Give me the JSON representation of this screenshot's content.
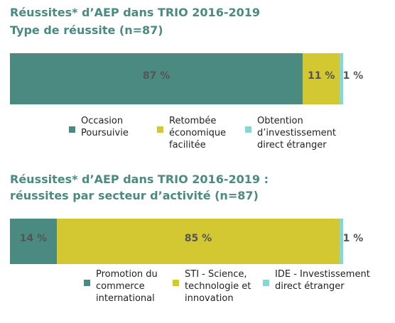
{
  "chart_data": [
    {
      "type": "bar",
      "stacked": true,
      "orientation": "horizontal",
      "title": "Réussites* d’AEP dans TRIO 2016-2019",
      "subtitle": "Type de réussite (n=87)",
      "series": [
        {
          "name": "Occasion Poursuivie",
          "color": "#4a8a80",
          "values": [
            87
          ],
          "value_labels": [
            "87 %"
          ]
        },
        {
          "name": "Retombée économique facilitée",
          "color": "#d4c832",
          "values": [
            11
          ],
          "value_labels": [
            "11 %"
          ]
        },
        {
          "name": "Obtention d’investissement direct étranger",
          "color": "#86d6d4",
          "values": [
            1
          ],
          "value_labels": [
            "1 %"
          ]
        }
      ]
    },
    {
      "type": "bar",
      "stacked": true,
      "orientation": "horizontal",
      "title": "Réussites* d’AEP dans TRIO 2016-2019 :",
      "subtitle": "réussites par secteur d’activité (n=87)",
      "series": [
        {
          "name": "Promotion du commerce international",
          "color": "#4a8a80",
          "values": [
            14
          ],
          "value_labels": [
            "14 %"
          ]
        },
        {
          "name": "STI - Science, technologie et innovation",
          "color": "#d4c832",
          "values": [
            85
          ],
          "value_labels": [
            "85 %"
          ]
        },
        {
          "name": "IDE - Investissement direct étranger",
          "color": "#86d6d4",
          "values": [
            1
          ],
          "value_labels": [
            "1 %"
          ]
        }
      ]
    }
  ]
}
